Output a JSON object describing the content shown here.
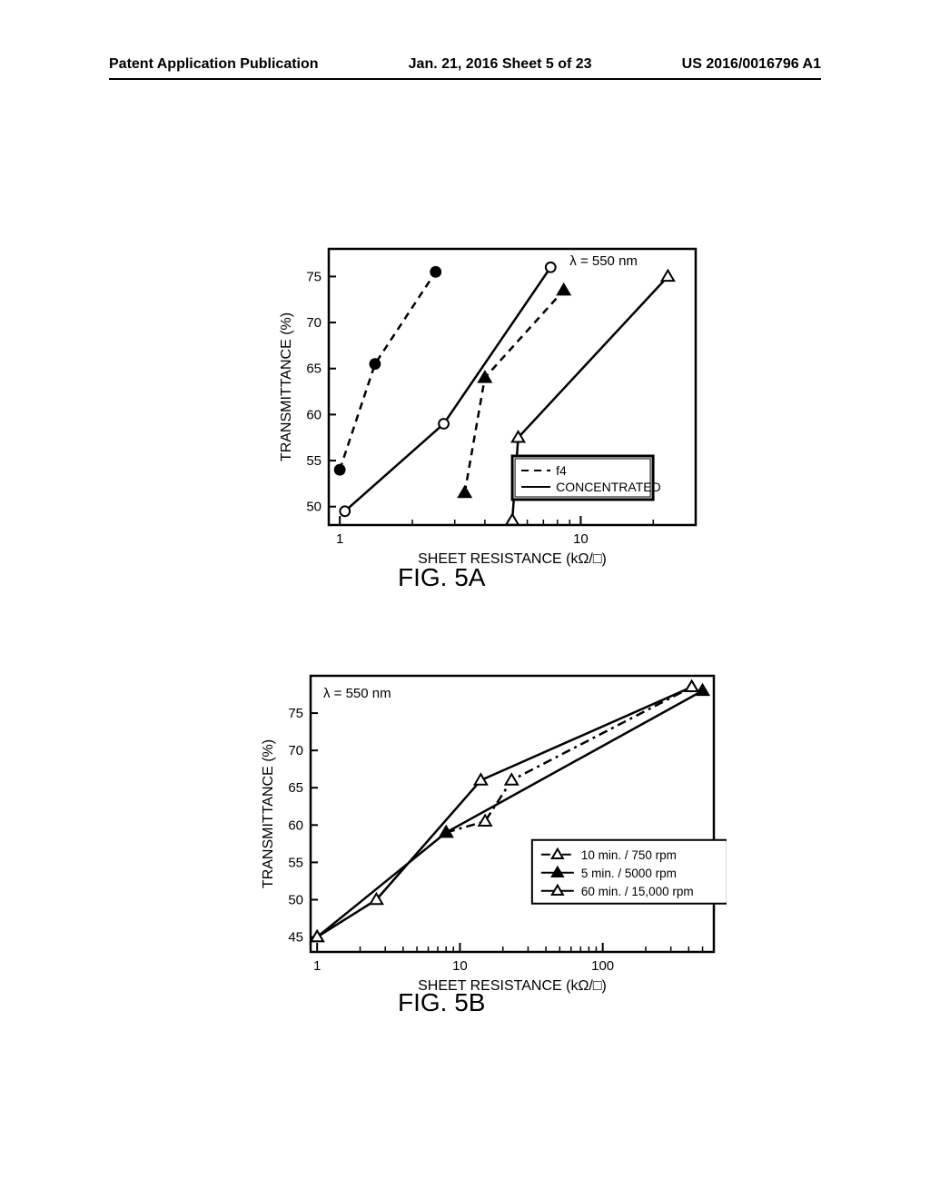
{
  "header": {
    "left": "Patent Application Publication",
    "center": "Jan. 21, 2016   Sheet 5 of 23",
    "right": "US 2016/0016796 A1"
  },
  "chart5a": {
    "type": "line",
    "fig_label": "FIG. 5A",
    "xlabel": "SHEET RESISTANCE (kΩ/□)",
    "ylabel": "TRANSMITTANCE (%)",
    "lambda_label": "λ = 550 nm",
    "xscale": "log",
    "xlim": [
      0.9,
      30
    ],
    "ylim": [
      48,
      78
    ],
    "yticks": [
      50,
      55,
      60,
      65,
      70,
      75
    ],
    "xticks_major": [
      1,
      10
    ],
    "legend": {
      "items": [
        {
          "label": "f4",
          "style": "dashed"
        },
        {
          "label": "CONCENTRATED",
          "style": "solid"
        }
      ]
    },
    "series": [
      {
        "name": "f4-circle",
        "line_style": "dashed",
        "marker": "circle-filled",
        "color": "#000000",
        "points": [
          [
            1.0,
            54
          ],
          [
            1.4,
            65.5
          ],
          [
            2.5,
            75.5
          ]
        ]
      },
      {
        "name": "concentrated-circle",
        "line_style": "solid",
        "marker": "circle-open",
        "color": "#000000",
        "points": [
          [
            1.05,
            49.5
          ],
          [
            2.7,
            59
          ],
          [
            7.5,
            76
          ]
        ]
      },
      {
        "name": "f4-triangle",
        "line_style": "dashed",
        "marker": "triangle-filled",
        "color": "#000000",
        "points": [
          [
            3.3,
            51.5
          ],
          [
            4.0,
            64
          ],
          [
            8.5,
            73.5
          ]
        ]
      },
      {
        "name": "concentrated-triangle",
        "line_style": "solid",
        "marker": "triangle-open",
        "color": "#000000",
        "points": [
          [
            5.2,
            48.5
          ],
          [
            5.5,
            57.5
          ],
          [
            23,
            75
          ]
        ]
      }
    ],
    "background_color": "#ffffff",
    "axis_color": "#000000",
    "line_width": 2.5,
    "marker_size": 9,
    "label_fontsize": 16,
    "tick_fontsize": 15
  },
  "chart5b": {
    "type": "line",
    "fig_label": "FIG. 5B",
    "xlabel": "SHEET RESISTANCE (kΩ/□)",
    "ylabel": "TRANSMITTANCE (%)",
    "lambda_label": "λ = 550 nm",
    "xscale": "log",
    "xlim": [
      0.9,
      600
    ],
    "ylim": [
      43,
      80
    ],
    "yticks": [
      45,
      50,
      55,
      60,
      65,
      70,
      75
    ],
    "xticks_major": [
      1,
      10,
      100
    ],
    "legend": {
      "items": [
        {
          "label": "10 min. / 750 rpm",
          "style": "dashdot",
          "marker": "triangle-open"
        },
        {
          "label": "5 min. / 5000 rpm",
          "style": "solid",
          "marker": "triangle-filled"
        },
        {
          "label": "60 min. / 15,000 rpm",
          "style": "solid",
          "marker": "triangle-open"
        }
      ]
    },
    "series": [
      {
        "name": "10min-750rpm",
        "line_style": "dashdot",
        "marker": "triangle-open",
        "color": "#000000",
        "points": [
          [
            8,
            59
          ],
          [
            15,
            60.5
          ],
          [
            23,
            66
          ],
          [
            420,
            78.5
          ]
        ]
      },
      {
        "name": "5min-5000rpm",
        "line_style": "solid",
        "marker": "triangle-filled",
        "color": "#000000",
        "points": [
          [
            1.0,
            45
          ],
          [
            8,
            59
          ],
          [
            500,
            78
          ]
        ]
      },
      {
        "name": "60min-15000rpm",
        "line_style": "solid",
        "marker": "triangle-open",
        "color": "#000000",
        "points": [
          [
            1.0,
            45
          ],
          [
            2.6,
            50
          ],
          [
            14,
            66
          ],
          [
            420,
            78.5
          ]
        ]
      }
    ],
    "background_color": "#ffffff",
    "axis_color": "#000000",
    "line_width": 2.5,
    "marker_size": 9,
    "label_fontsize": 16,
    "tick_fontsize": 15
  }
}
